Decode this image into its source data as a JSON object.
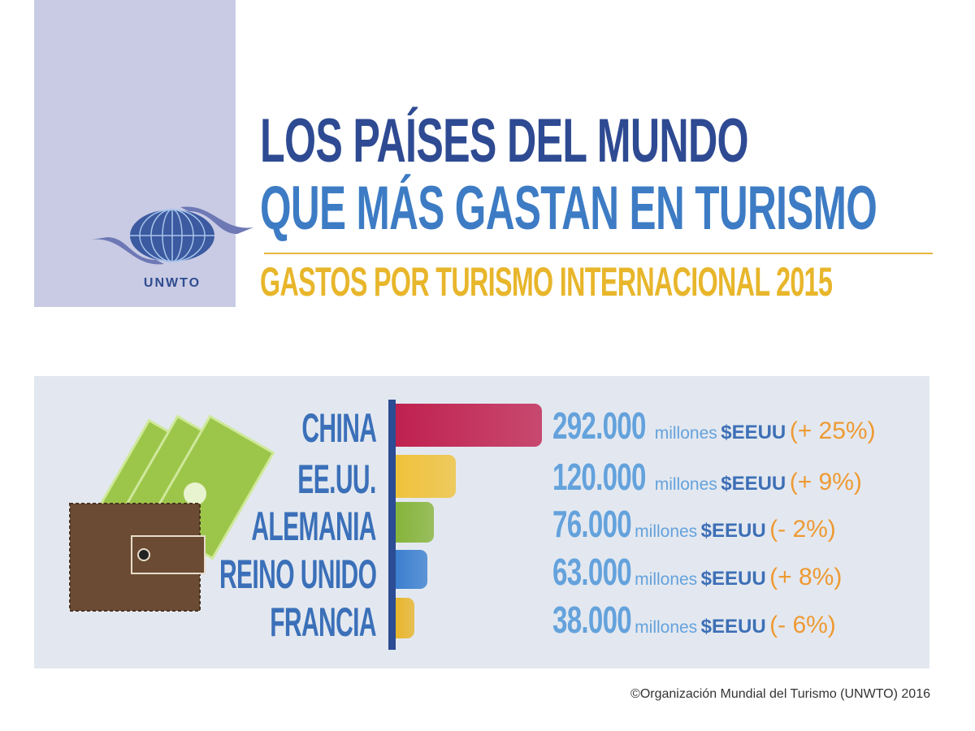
{
  "logo": {
    "text": "UNWTO"
  },
  "title": {
    "line1": "LOS PAÍSES DEL MUNDO",
    "line2": "QUE MÁS GASTAN EN TURISMO",
    "subtitle": "GASTOS POR TURISMO INTERNACIONAL 2015"
  },
  "chart_data": {
    "type": "bar",
    "orientation": "horizontal",
    "categories": [
      "CHINA",
      "EE.UU.",
      "ALEMANIA",
      "REINO UNIDO",
      "FRANCIA"
    ],
    "values": [
      292000,
      120000,
      76000,
      63000,
      38000
    ],
    "value_labels": [
      "292.000",
      "120.000",
      "76.000",
      "63.000",
      "38.000"
    ],
    "unit_label": "millones",
    "currency_label": "$EEUU",
    "changes": [
      "(+ 25%)",
      "(+ 9%)",
      "(- 2%)",
      "(+ 8%)",
      "(- 6%)"
    ],
    "colors": [
      "#c0214f",
      "#f0c23a",
      "#86b43a",
      "#3b7fcf",
      "#e8b52c"
    ],
    "xlim": [
      0,
      292000
    ]
  },
  "footer": {
    "copyright": "©Organización Mundial del Turismo (UNWTO) 2016"
  }
}
